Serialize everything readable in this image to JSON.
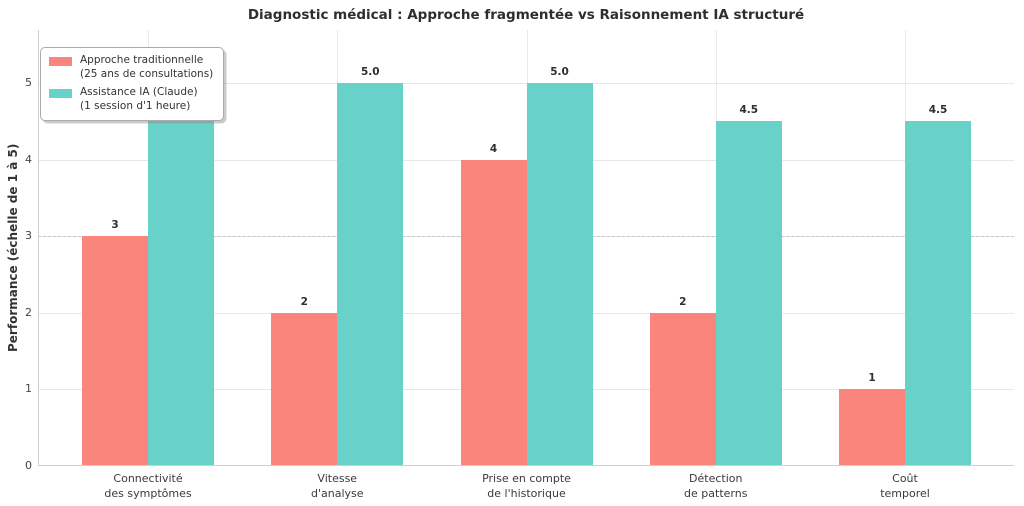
{
  "chart_data": {
    "type": "bar",
    "title": "Diagnostic médical : Approche fragmentée vs Raisonnement IA structuré",
    "xlabel": "",
    "ylabel": "Performance (échelle de 1 à 5)",
    "ylim": [
      0,
      5.7
    ],
    "yticks": [
      0,
      1,
      2,
      3,
      4,
      5
    ],
    "grid": true,
    "legend_position": "upper left",
    "reference_line": {
      "y": 3,
      "style": "dashed",
      "color": "#c6c6c6"
    },
    "categories": [
      "Connectivité\ndes symptômes",
      "Vitesse\nd'analyse",
      "Prise en compte\nde l'historique",
      "Détection\nde patterns",
      "Coût\ntemporel"
    ],
    "series": [
      {
        "name": "Approche traditionnelle",
        "subtitle": "(25 ans de consultations)",
        "color": "#FA857C",
        "values": [
          3,
          2,
          4,
          2,
          1
        ],
        "labels": [
          "3",
          "2",
          "4",
          "2",
          "1"
        ]
      },
      {
        "name": "Assistance IA (Claude)",
        "subtitle": "(1 session d'1 heure)",
        "color": "#69D2C8",
        "values": [
          5.0,
          5.0,
          5.0,
          4.5,
          4.5
        ],
        "labels": [
          "5.0",
          "5.0",
          "5.0",
          "4.5",
          "4.5"
        ]
      }
    ]
  }
}
